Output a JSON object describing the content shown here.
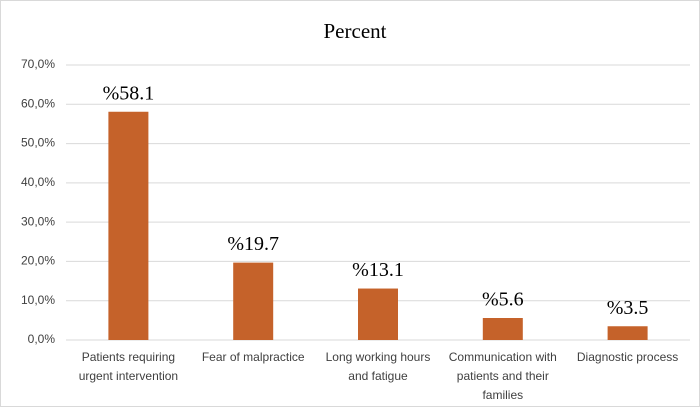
{
  "chart_data": {
    "type": "bar",
    "title": "Percent",
    "categories": [
      "Patients requiring urgent intervention",
      "Fear of malpractice",
      "Long working hours and fatigue",
      "Communication with patients and their families",
      "Diagnostic process"
    ],
    "values": [
      58.1,
      19.7,
      13.1,
      5.6,
      3.5
    ],
    "value_labels": [
      "%58.1",
      "%19.7",
      "%13.1",
      "%5.6",
      "%3.5"
    ],
    "color": "#c5622a",
    "ylim": [
      0,
      70
    ],
    "yticks": [
      {
        "value": 0,
        "label": "0,0%"
      },
      {
        "value": 10,
        "label": "10,0%"
      },
      {
        "value": 20,
        "label": "20,0%"
      },
      {
        "value": 30,
        "label": "30,0%"
      },
      {
        "value": 40,
        "label": "40,0%"
      },
      {
        "value": 50,
        "label": "50,0%"
      },
      {
        "value": 60,
        "label": "60,0%"
      },
      {
        "value": 70,
        "label": "70,0%"
      }
    ],
    "grid": true
  }
}
